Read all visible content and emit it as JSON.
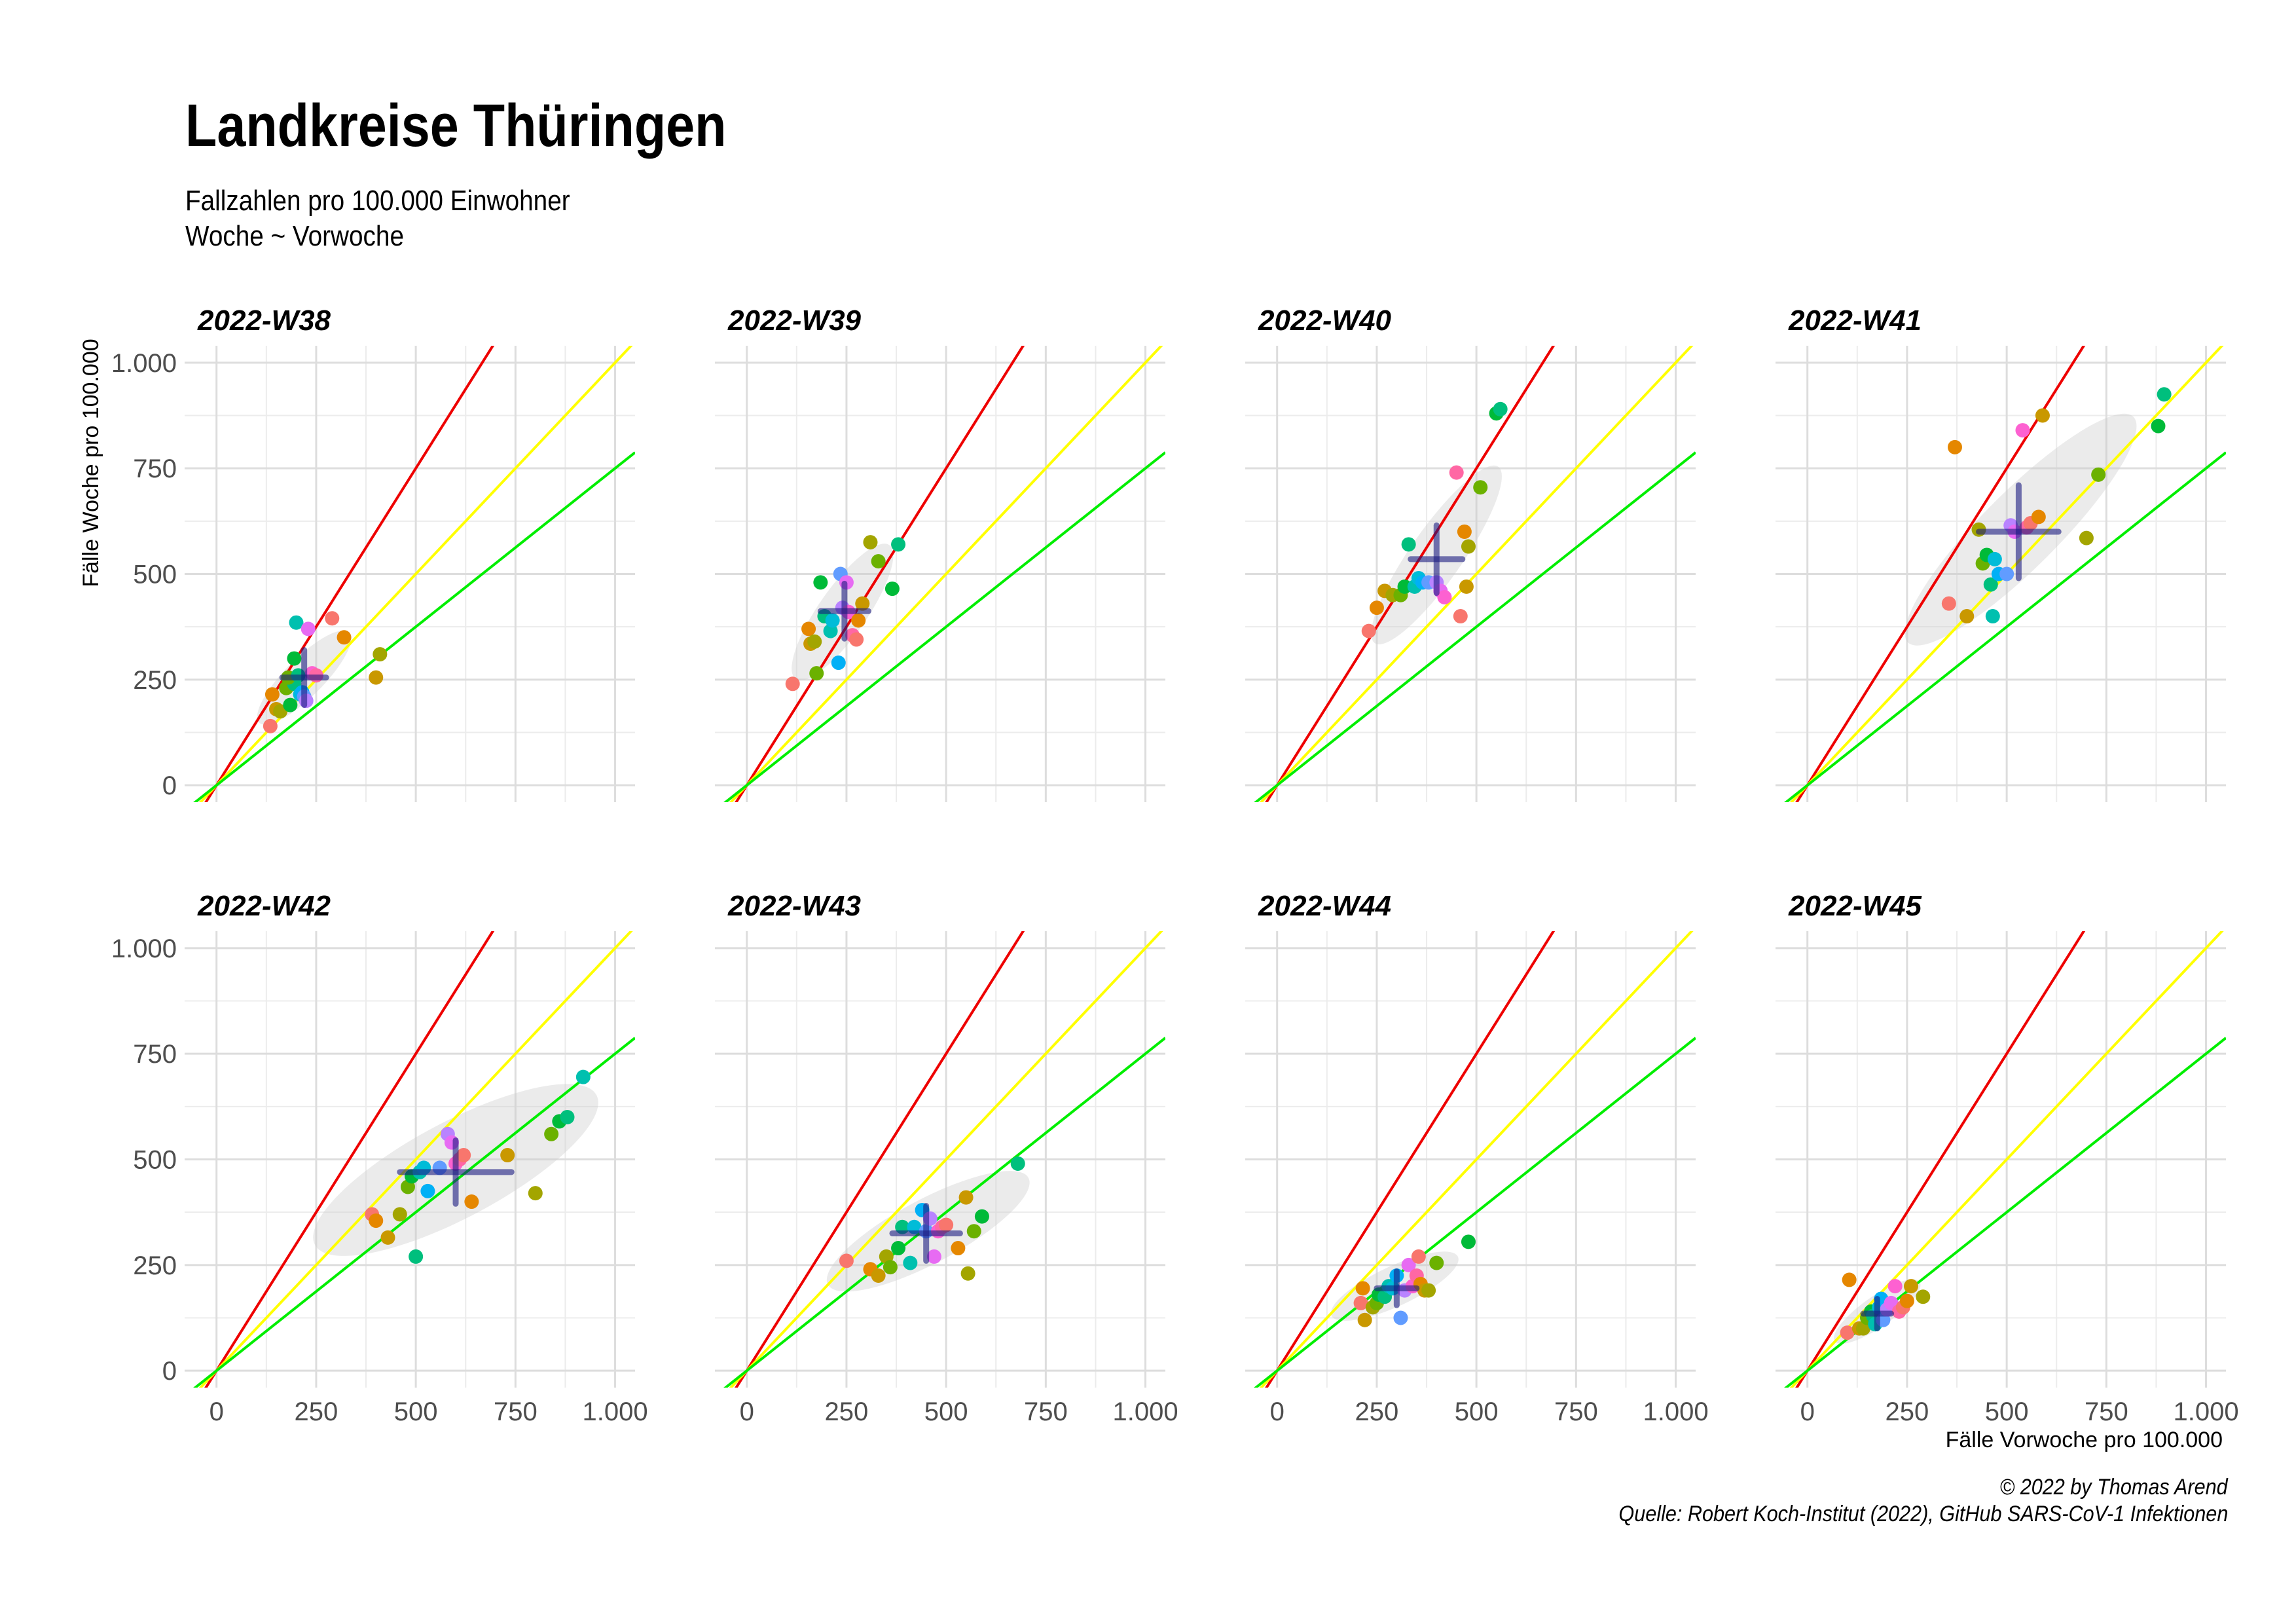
{
  "title": "Landkreise Thüringen",
  "subtitle": [
    "Fallzahlen pro 100.000 Einwohner",
    "Woche ~ Vorwoche"
  ],
  "caption": [
    "© 2022 by Thomas Arend",
    "Quelle: Robert Koch-Institut (2022), GitHub SARS-CoV-1 Infektionen"
  ],
  "colors": {
    "line_red": "#ee0000",
    "line_yellow": "#ffff00",
    "line_green": "#00ee00",
    "ellipse": "#cccccc",
    "cross": "#1a1a80",
    "grid": "#dddddd",
    "point_palette": [
      "#F8766D",
      "#E58700",
      "#C99800",
      "#A3A500",
      "#6BB100",
      "#00BA38",
      "#00BF7D",
      "#00C0AF",
      "#00BCD8",
      "#00B0F6",
      "#619CFF",
      "#B983FF",
      "#E76BF3",
      "#FD61D1",
      "#FF67A4"
    ]
  },
  "chart_data": {
    "type": "scatter",
    "xlabel": "Fälle Vorwoche pro 100.000",
    "ylabel": "Fälle Woche pro 100.000",
    "xlim": [
      -80,
      1050
    ],
    "ylim": [
      -40,
      1040
    ],
    "xticks": [
      0,
      250,
      500,
      750,
      1000
    ],
    "xtick_labels": [
      "0",
      "250",
      "500",
      "750",
      "1.000"
    ],
    "yticks": [
      0,
      250,
      500,
      750,
      1000
    ],
    "ytick_labels": [
      "0",
      "250",
      "500",
      "750",
      "1.000"
    ],
    "grid": true,
    "reference_lines": [
      {
        "color": "red",
        "slope": 1.5
      },
      {
        "color": "yellow",
        "slope": 1.0
      },
      {
        "color": "green",
        "slope": 0.75
      }
    ],
    "panels": [
      {
        "label": "2022-W38",
        "mean": [
          220,
          255
        ],
        "sd": [
          55,
          65
        ],
        "ellipse": {
          "center": [
            220,
            255
          ],
          "a": 160,
          "b": 48,
          "angle": 45
        },
        "points": [
          [
            135,
            140
          ],
          [
            140,
            215
          ],
          [
            150,
            180
          ],
          [
            160,
            175
          ],
          [
            175,
            230
          ],
          [
            185,
            190
          ],
          [
            195,
            240
          ],
          [
            200,
            385
          ],
          [
            210,
            215
          ],
          [
            215,
            220
          ],
          [
            220,
            210
          ],
          [
            225,
            200
          ],
          [
            230,
            370
          ],
          [
            240,
            265
          ],
          [
            250,
            260
          ],
          [
            290,
            395
          ],
          [
            320,
            350
          ],
          [
            400,
            255
          ],
          [
            410,
            310
          ],
          [
            180,
            255
          ],
          [
            195,
            300
          ],
          [
            205,
            260
          ]
        ]
      },
      {
        "label": "2022-W39",
        "mean": [
          245,
          412
        ],
        "sd": [
          60,
          65
        ],
        "ellipse": {
          "center": [
            240,
            410
          ],
          "a": 205,
          "b": 60,
          "angle": 55
        },
        "points": [
          [
            115,
            240
          ],
          [
            155,
            370
          ],
          [
            160,
            335
          ],
          [
            170,
            340
          ],
          [
            175,
            265
          ],
          [
            185,
            480
          ],
          [
            195,
            400
          ],
          [
            210,
            365
          ],
          [
            215,
            390
          ],
          [
            230,
            290
          ],
          [
            235,
            500
          ],
          [
            240,
            420
          ],
          [
            250,
            480
          ],
          [
            255,
            410
          ],
          [
            265,
            355
          ],
          [
            275,
            345
          ],
          [
            280,
            390
          ],
          [
            290,
            430
          ],
          [
            310,
            575
          ],
          [
            330,
            530
          ],
          [
            365,
            465
          ],
          [
            380,
            570
          ]
        ]
      },
      {
        "label": "2022-W40",
        "mean": [
          400,
          535
        ],
        "sd": [
          65,
          80
        ],
        "ellipse": {
          "center": [
            400,
            545
          ],
          "a": 270,
          "b": 65,
          "angle": 55
        },
        "points": [
          [
            230,
            365
          ],
          [
            250,
            420
          ],
          [
            270,
            460
          ],
          [
            290,
            450
          ],
          [
            310,
            450
          ],
          [
            320,
            470
          ],
          [
            330,
            570
          ],
          [
            345,
            470
          ],
          [
            355,
            490
          ],
          [
            365,
            480
          ],
          [
            380,
            480
          ],
          [
            400,
            480
          ],
          [
            410,
            460
          ],
          [
            420,
            445
          ],
          [
            450,
            740
          ],
          [
            460,
            400
          ],
          [
            470,
            600
          ],
          [
            475,
            470
          ],
          [
            480,
            565
          ],
          [
            510,
            705
          ],
          [
            550,
            880
          ],
          [
            560,
            890
          ]
        ]
      },
      {
        "label": "2022-W41",
        "mean": [
          530,
          600
        ],
        "sd": [
          100,
          110
        ],
        "ellipse": {
          "center": [
            535,
            605
          ],
          "a": 400,
          "b": 95,
          "angle": 45
        },
        "points": [
          [
            355,
            430
          ],
          [
            370,
            800
          ],
          [
            400,
            400
          ],
          [
            430,
            605
          ],
          [
            440,
            525
          ],
          [
            450,
            545
          ],
          [
            460,
            475
          ],
          [
            465,
            400
          ],
          [
            470,
            535
          ],
          [
            480,
            500
          ],
          [
            500,
            500
          ],
          [
            510,
            615
          ],
          [
            520,
            600
          ],
          [
            540,
            840
          ],
          [
            550,
            610
          ],
          [
            560,
            620
          ],
          [
            580,
            635
          ],
          [
            590,
            875
          ],
          [
            700,
            585
          ],
          [
            730,
            735
          ],
          [
            880,
            850
          ],
          [
            895,
            925
          ]
        ]
      },
      {
        "label": "2022-W42",
        "mean": [
          600,
          470
        ],
        "sd": [
          140,
          75
        ],
        "ellipse": {
          "center": [
            600,
            475
          ],
          "a": 400,
          "b": 120,
          "angle": 28
        },
        "points": [
          [
            390,
            370
          ],
          [
            400,
            355
          ],
          [
            430,
            315
          ],
          [
            460,
            370
          ],
          [
            480,
            435
          ],
          [
            490,
            460
          ],
          [
            500,
            270
          ],
          [
            510,
            470
          ],
          [
            520,
            480
          ],
          [
            530,
            425
          ],
          [
            560,
            480
          ],
          [
            580,
            560
          ],
          [
            590,
            540
          ],
          [
            600,
            490
          ],
          [
            610,
            500
          ],
          [
            620,
            510
          ],
          [
            640,
            400
          ],
          [
            730,
            510
          ],
          [
            800,
            420
          ],
          [
            840,
            560
          ],
          [
            860,
            590
          ],
          [
            880,
            600
          ],
          [
            920,
            695
          ]
        ]
      },
      {
        "label": "2022-W43",
        "mean": [
          450,
          325
        ],
        "sd": [
          85,
          65
        ],
        "ellipse": {
          "center": [
            455,
            330
          ],
          "a": 285,
          "b": 80,
          "angle": 28
        },
        "points": [
          [
            250,
            260
          ],
          [
            310,
            240
          ],
          [
            330,
            225
          ],
          [
            350,
            270
          ],
          [
            360,
            245
          ],
          [
            380,
            290
          ],
          [
            390,
            340
          ],
          [
            410,
            255
          ],
          [
            420,
            340
          ],
          [
            440,
            380
          ],
          [
            450,
            330
          ],
          [
            460,
            360
          ],
          [
            470,
            270
          ],
          [
            480,
            330
          ],
          [
            490,
            340
          ],
          [
            500,
            345
          ],
          [
            530,
            290
          ],
          [
            550,
            410
          ],
          [
            555,
            230
          ],
          [
            570,
            330
          ],
          [
            590,
            365
          ],
          [
            680,
            490
          ]
        ]
      },
      {
        "label": "2022-W44",
        "mean": [
          300,
          195
        ],
        "sd": [
          50,
          40
        ],
        "ellipse": {
          "center": [
            295,
            200
          ],
          "a": 175,
          "b": 50,
          "angle": 25
        },
        "points": [
          [
            210,
            160
          ],
          [
            215,
            195
          ],
          [
            220,
            120
          ],
          [
            240,
            150
          ],
          [
            250,
            160
          ],
          [
            255,
            180
          ],
          [
            270,
            175
          ],
          [
            280,
            200
          ],
          [
            290,
            195
          ],
          [
            300,
            225
          ],
          [
            310,
            125
          ],
          [
            320,
            190
          ],
          [
            330,
            250
          ],
          [
            340,
            200
          ],
          [
            350,
            225
          ],
          [
            355,
            270
          ],
          [
            360,
            205
          ],
          [
            370,
            190
          ],
          [
            380,
            190
          ],
          [
            400,
            255
          ],
          [
            480,
            305
          ]
        ]
      },
      {
        "label": "2022-W45",
        "mean": [
          175,
          135
        ],
        "sd": [
          35,
          35
        ],
        "ellipse": {
          "center": [
            175,
            140
          ],
          "a": 130,
          "b": 38,
          "angle": 35
        },
        "points": [
          [
            100,
            90
          ],
          [
            105,
            215
          ],
          [
            130,
            100
          ],
          [
            140,
            100
          ],
          [
            150,
            125
          ],
          [
            160,
            140
          ],
          [
            165,
            130
          ],
          [
            170,
            110
          ],
          [
            180,
            150
          ],
          [
            185,
            170
          ],
          [
            190,
            120
          ],
          [
            200,
            145
          ],
          [
            210,
            160
          ],
          [
            220,
            200
          ],
          [
            230,
            140
          ],
          [
            240,
            150
          ],
          [
            250,
            165
          ],
          [
            260,
            200
          ],
          [
            290,
            175
          ]
        ]
      }
    ]
  }
}
